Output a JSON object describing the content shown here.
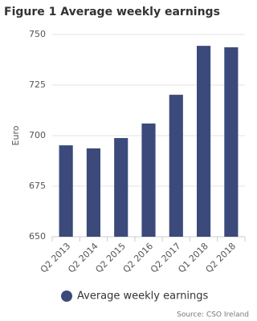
{
  "chart_data": {
    "type": "bar",
    "title": "Figure 1 Average weekly earnings",
    "y_label": "Euro",
    "categories": [
      "Q2 2013",
      "Q2 2014",
      "Q2 2015",
      "Q2 2016",
      "Q2 2017",
      "Q1 2018",
      "Q2 2018"
    ],
    "series": [
      {
        "name": "Average weekly earnings",
        "color": "#3b4a7a",
        "values": [
          695.2,
          693.7,
          698.8,
          706,
          720.2,
          744.4,
          743.7
        ]
      }
    ],
    "ylim": [
      650,
      750
    ],
    "yticks": [
      650,
      675,
      700,
      725,
      750
    ],
    "grid": true,
    "legend": "bottom",
    "source": "Source: CSO Ireland"
  }
}
